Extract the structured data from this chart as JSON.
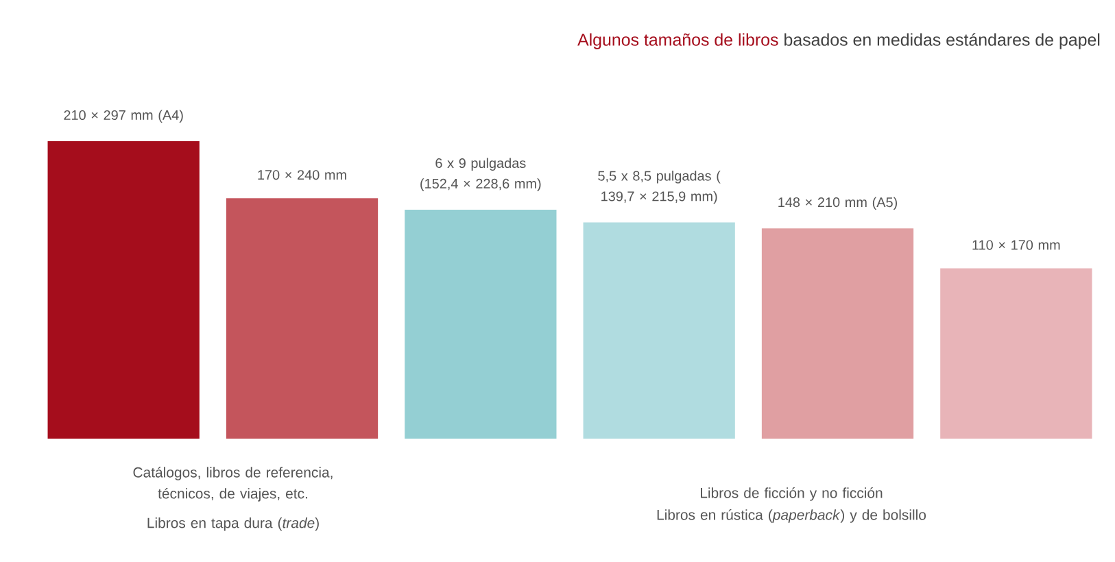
{
  "chart_data": {
    "type": "bar",
    "title": "Algunos tamaños de libros",
    "subtitle": "basados en medidas estándares de papel",
    "categories": [
      null,
      null,
      null,
      null,
      null,
      null
    ],
    "values": [
      297,
      240,
      228.6,
      215.9,
      210,
      170
    ],
    "ylim": [
      0,
      297
    ],
    "tick_labels": false,
    "colors": [
      "#a50d1c",
      "#c4555c",
      "#94cfd3",
      "#b0dce0",
      "#e09fa2",
      "#e8b4b8"
    ],
    "value_labels": [
      "210 × 297 mm (A4)",
      "170 × 240 mm",
      "6 x 9 pulgadas (152,4 × 228,6 mm)",
      "5,5 x 8,5 pulgadas ( 139,7 × 215,9 mm)",
      "148 × 210 mm (A5)",
      "110 × 170 mm"
    ],
    "annotations": [
      "Catálogos, libros de referencia, técnicos, de viajes, etc.",
      "Libros en tapa dura (*trade*)",
      "Libros de ficción y no ficción",
      "Libros en rústica (*paperback*) y de bolsillo"
    ]
  }
}
